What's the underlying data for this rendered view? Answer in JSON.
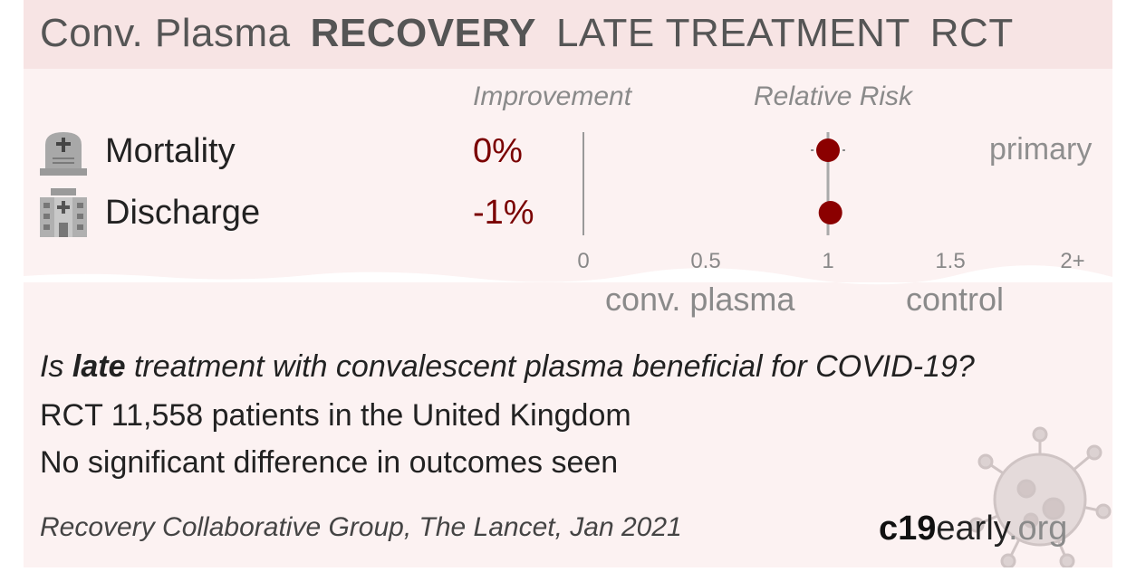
{
  "header": {
    "treatment": "Conv. Plasma",
    "study": "RECOVERY",
    "stage": "LATE TREATMENT",
    "design": "RCT"
  },
  "columns": {
    "improvement": "Improvement",
    "relative_risk": "Relative Risk"
  },
  "outcomes": [
    {
      "icon": "tombstone-icon",
      "label": "Mortality",
      "improvement": "0%"
    },
    {
      "icon": "hospital-icon",
      "label": "Discharge",
      "improvement": "-1%"
    }
  ],
  "primary_label": "primary",
  "favors": {
    "left": "conv. plasma",
    "right": "control"
  },
  "chart_data": {
    "type": "scatter",
    "title": "",
    "xlabel": "",
    "ylabel": "",
    "categories": [
      "Mortality",
      "Discharge"
    ],
    "series": [
      {
        "values": [
          1.0,
          1.01
        ],
        "ci_low": [
          0.93,
          0.99
        ],
        "ci_high": [
          1.07,
          1.03
        ],
        "color": "#8b0000"
      }
    ],
    "x_ticks": [
      "0",
      "0.5",
      "1",
      "1.5",
      "2+"
    ],
    "x_tick_values": [
      0,
      0.5,
      1,
      1.5,
      2
    ],
    "xlim": [
      0,
      2
    ],
    "reference_line": 1,
    "null_line": 0
  },
  "summary": {
    "question_prefix": "Is ",
    "question_bold": "late",
    "question_suffix": " treatment with convalescent plasma beneficial for COVID-19?",
    "line1": "RCT 11,558 patients in the United Kingdom",
    "line2": "No significant difference in outcomes seen"
  },
  "citation": "Recovery Collaborative Group, The Lancet, Jan 2021",
  "brand": {
    "bold": "c19",
    "mid": "early",
    "light": ".org"
  },
  "colors": {
    "accent": "#8b0000",
    "value_text": "#7a0000",
    "header_bg": "#f7e4e4",
    "card_bg": "#fcf2f2"
  }
}
